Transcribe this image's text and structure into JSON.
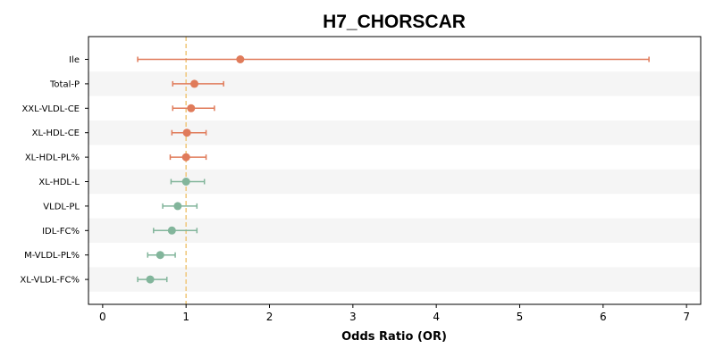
{
  "chart_data": {
    "type": "forest",
    "title": "H7_CHORSCAR",
    "xlabel": "Odds Ratio (OR)",
    "ylabel": "",
    "xlim": [
      -0.17,
      7.17
    ],
    "xticks": [
      "0",
      "1",
      "2",
      "3",
      "4",
      "5",
      "6",
      "7"
    ],
    "reference_line": 1,
    "grid": false,
    "legend": "none",
    "colors": {
      "risk": "#e07b5a",
      "protective": "#82b59b",
      "reference_line": "#f0c77a",
      "band": "#f5f5f5"
    },
    "rows": [
      {
        "label": "Ile",
        "or": 1.65,
        "lo": 0.42,
        "hi": 6.55,
        "group": "risk"
      },
      {
        "label": "Total-P",
        "or": 1.1,
        "lo": 0.84,
        "hi": 1.45,
        "group": "risk"
      },
      {
        "label": "XXL-VLDL-CE",
        "or": 1.06,
        "lo": 0.84,
        "hi": 1.34,
        "group": "risk"
      },
      {
        "label": "XL-HDL-CE",
        "or": 1.01,
        "lo": 0.83,
        "hi": 1.24,
        "group": "risk"
      },
      {
        "label": "XL-HDL-PL%",
        "or": 1.0,
        "lo": 0.81,
        "hi": 1.24,
        "group": "risk"
      },
      {
        "label": "XL-HDL-L",
        "or": 1.0,
        "lo": 0.82,
        "hi": 1.22,
        "group": "protective"
      },
      {
        "label": "VLDL-PL",
        "or": 0.9,
        "lo": 0.72,
        "hi": 1.13,
        "group": "protective"
      },
      {
        "label": "IDL-FC%",
        "or": 0.83,
        "lo": 0.61,
        "hi": 1.13,
        "group": "protective"
      },
      {
        "label": "M-VLDL-PL%",
        "or": 0.69,
        "lo": 0.54,
        "hi": 0.87,
        "group": "protective"
      },
      {
        "label": "XL-VLDL-FC%",
        "or": 0.57,
        "lo": 0.42,
        "hi": 0.77,
        "group": "protective"
      }
    ]
  }
}
